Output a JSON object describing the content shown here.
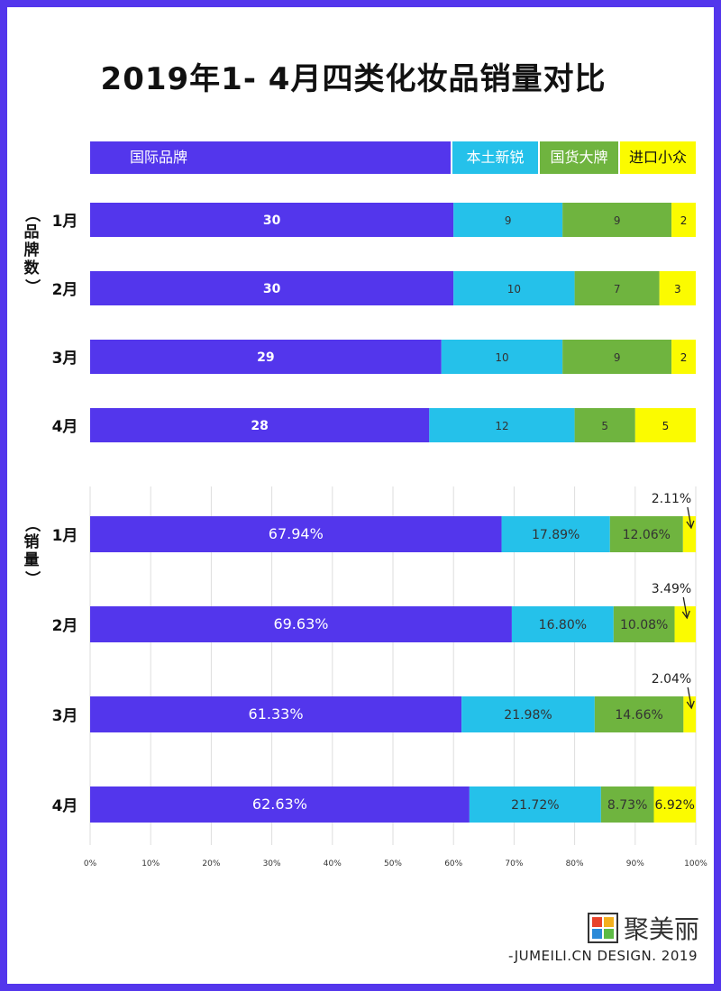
{
  "title": "2019年1- 4月四类化妆品销量对比",
  "colors": {
    "intl": "#5336ec",
    "local": "#25c1ea",
    "domestic": "#6fb43f",
    "niche": "#fbfb00"
  },
  "legend": [
    {
      "label": "国际品牌",
      "color": "#5336ec",
      "text_color": "#ffffff"
    },
    {
      "label": "本土新锐",
      "color": "#25c1ea",
      "text_color": "#ffffff"
    },
    {
      "label": "国货大牌",
      "color": "#6fb43f",
      "text_color": "#ffffff"
    },
    {
      "label": "进口小众",
      "color": "#fbfb00",
      "text_color": "#111111"
    }
  ],
  "chart_data": [
    {
      "type": "bar",
      "orientation": "horizontal",
      "stacked": true,
      "y_title": "（品牌数）",
      "categories": [
        "1月",
        "2月",
        "3月",
        "4月"
      ],
      "series": [
        {
          "name": "国际品牌",
          "values": [
            30,
            30,
            29,
            28
          ]
        },
        {
          "name": "本土新锐",
          "values": [
            9,
            10,
            10,
            12
          ]
        },
        {
          "name": "国货大牌",
          "values": [
            9,
            7,
            9,
            5
          ]
        },
        {
          "name": "进口小众",
          "values": [
            2,
            3,
            2,
            5
          ]
        }
      ],
      "xlim": [
        0,
        50
      ]
    },
    {
      "type": "bar",
      "orientation": "horizontal",
      "stacked": true,
      "y_title": "（销量）",
      "categories": [
        "1月",
        "2月",
        "3月",
        "4月"
      ],
      "series": [
        {
          "name": "国际品牌",
          "values": [
            "67.94%",
            "69.63%",
            "61.33%",
            "62.63%"
          ]
        },
        {
          "name": "本土新锐",
          "values": [
            "17.89%",
            "16.80%",
            "21.98%",
            "21.72%"
          ]
        },
        {
          "name": "国货大牌",
          "values": [
            "12.06%",
            "10.08%",
            "14.66%",
            "8.73%"
          ]
        },
        {
          "name": "进口小众",
          "values": [
            "2.11%",
            "3.49%",
            "2.04%",
            "6.92%"
          ]
        }
      ],
      "xlim": [
        0,
        100
      ],
      "x_ticks": [
        "0%",
        "10%",
        "20%",
        "30%",
        "40%",
        "50%",
        "60%",
        "70%",
        "80%",
        "90%",
        "100%"
      ],
      "grid": true
    }
  ],
  "watermark": {
    "brand": "聚美丽",
    "credit": "-JUMEILI.CN DESIGN. 2019"
  }
}
